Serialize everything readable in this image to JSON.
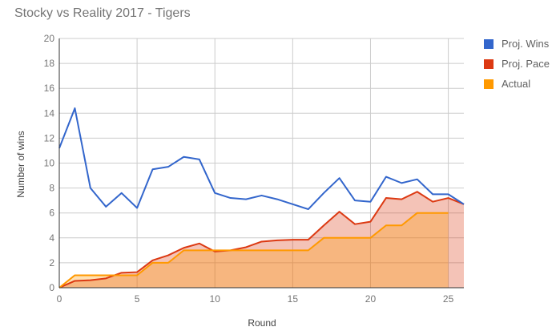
{
  "title": "Stocky vs Reality 2017 - Tigers",
  "chart_data": {
    "type": "area",
    "title": "Stocky vs Reality 2017 - Tigers",
    "xlabel": "Round",
    "ylabel": "Number of wins",
    "xlim": [
      0,
      26
    ],
    "ylim": [
      0,
      20
    ],
    "xticks": [
      0,
      5,
      10,
      15,
      20,
      25
    ],
    "yticks": [
      0,
      2,
      4,
      6,
      8,
      10,
      12,
      14,
      16,
      18,
      20
    ],
    "grid": true,
    "legend_position": "right",
    "x": [
      0,
      1,
      2,
      3,
      4,
      5,
      6,
      7,
      8,
      9,
      10,
      11,
      12,
      13,
      14,
      15,
      16,
      17,
      18,
      19,
      20,
      21,
      22,
      23,
      24,
      25,
      26
    ],
    "series": [
      {
        "name": "Proj. Wins",
        "color": "#3366cc",
        "style": "line",
        "values": [
          11.2,
          14.4,
          8.0,
          6.5,
          7.6,
          6.4,
          9.5,
          9.7,
          10.5,
          10.3,
          7.6,
          7.2,
          7.1,
          7.4,
          7.1,
          6.7,
          6.3,
          7.6,
          8.8,
          7.0,
          6.9,
          8.9,
          8.4,
          8.7,
          7.5,
          7.5,
          6.7
        ]
      },
      {
        "name": "Proj. Pace",
        "color": "#dc3912",
        "style": "area",
        "values": [
          0,
          0.55,
          0.6,
          0.75,
          1.2,
          1.25,
          2.2,
          2.6,
          3.2,
          3.55,
          2.9,
          3.0,
          3.25,
          3.7,
          3.8,
          3.85,
          3.85,
          5.0,
          6.1,
          5.1,
          5.3,
          7.2,
          7.1,
          7.7,
          6.9,
          7.2,
          6.7
        ]
      },
      {
        "name": "Actual",
        "color": "#ff9900",
        "style": "area",
        "values": [
          0,
          1,
          1,
          1,
          1,
          1,
          2,
          2,
          3,
          3,
          3,
          3,
          3,
          3,
          3,
          3,
          3,
          4,
          4,
          4,
          4,
          5,
          5,
          6,
          6,
          6,
          null
        ]
      }
    ]
  },
  "axis": {
    "xlabel": "Round",
    "ylabel": "Number of wins"
  },
  "legend": [
    {
      "label": "Proj. Wins",
      "color": "#3366cc"
    },
    {
      "label": "Proj. Pace",
      "color": "#dc3912"
    },
    {
      "label": "Actual",
      "color": "#ff9900"
    }
  ]
}
